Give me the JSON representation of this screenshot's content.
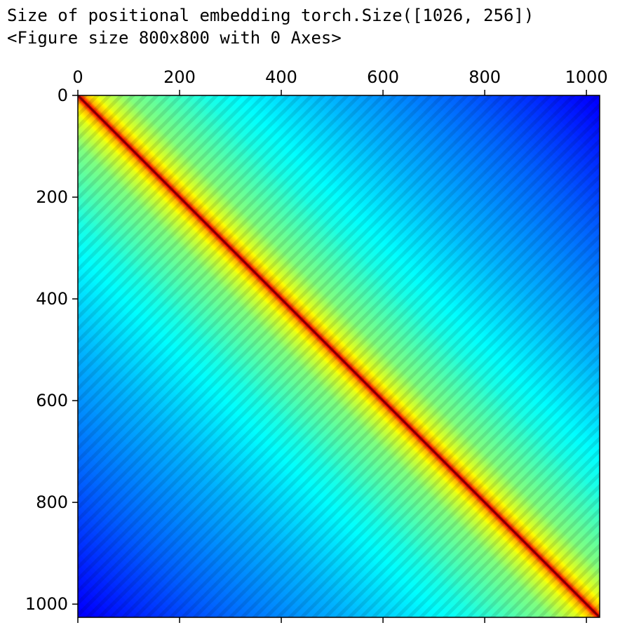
{
  "output": {
    "line1": "Size of positional embedding torch.Size([1026, 256])",
    "line2": "<Figure size 800x800 with 0 Axes>"
  },
  "chart_data": {
    "type": "heatmap",
    "title": "",
    "xlabel": "",
    "ylabel": "",
    "colormap": "jet",
    "x_ticks": [
      0,
      200,
      400,
      600,
      800,
      1000
    ],
    "y_ticks": [
      0,
      200,
      400,
      600,
      800,
      1000
    ],
    "xlim": [
      0,
      1026
    ],
    "ylim": [
      0,
      1026
    ],
    "matrix_shape": [
      1026,
      1026
    ],
    "x_axis_position": "top",
    "y_axis_inverted": true,
    "grid": false,
    "pattern": "symmetric similarity matrix: maximum on the diagonal, decaying with distance |i - j|, with periodic diagonal striations",
    "value_by_distance": [
      {
        "distance": 0,
        "value": 1.0
      },
      {
        "distance": 5,
        "value": 0.85
      },
      {
        "distance": 15,
        "value": 0.7
      },
      {
        "distance": 40,
        "value": 0.6
      },
      {
        "distance": 100,
        "value": 0.5
      },
      {
        "distance": 250,
        "value": 0.4
      },
      {
        "distance": 500,
        "value": 0.3
      },
      {
        "distance": 750,
        "value": 0.22
      },
      {
        "distance": 1025,
        "value": 0.12
      }
    ]
  }
}
